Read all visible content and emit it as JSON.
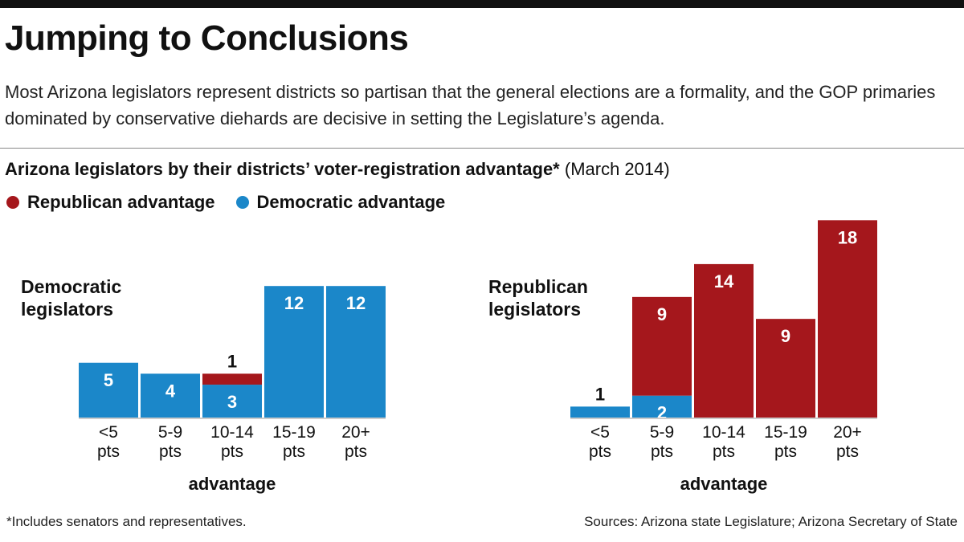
{
  "title": "Jumping to Conclusions",
  "subtitle": "Most Arizona legislators represent districts so partisan that the general elections are a formality, and the GOP primaries dominated by conservative diehards are decisive in setting the Legislature’s agenda.",
  "chart_heading": {
    "bold": "Arizona legislators by their districts’ voter-registration advantage*",
    "date": "(March 2014)"
  },
  "legend": [
    {
      "label": "Republican advantage",
      "color": "#a5171c"
    },
    {
      "label": "Democratic advantage",
      "color": "#1b87c9"
    }
  ],
  "chart_data": [
    {
      "type": "bar",
      "stacked": true,
      "title_lines": [
        "Democratic",
        "legislators"
      ],
      "categories": [
        [
          "<5",
          "pts"
        ],
        [
          "5-9",
          "pts"
        ],
        [
          "10-14",
          "pts"
        ],
        [
          "15-19",
          "pts"
        ],
        [
          "20+",
          "pts"
        ]
      ],
      "series": [
        {
          "name": "Democratic advantage",
          "color": "#1b87c9",
          "values": [
            5,
            4,
            3,
            12,
            12
          ]
        },
        {
          "name": "Republican advantage",
          "color": "#a5171c",
          "values": [
            0,
            0,
            1,
            0,
            0
          ]
        }
      ],
      "xlabel": "advantage"
    },
    {
      "type": "bar",
      "stacked": true,
      "title_lines": [
        "Republican",
        "legislators"
      ],
      "categories": [
        [
          "<5",
          "pts"
        ],
        [
          "5-9",
          "pts"
        ],
        [
          "10-14",
          "pts"
        ],
        [
          "15-19",
          "pts"
        ],
        [
          "20+",
          "pts"
        ]
      ],
      "series": [
        {
          "name": "Democratic advantage",
          "color": "#1b87c9",
          "values": [
            1,
            2,
            0,
            0,
            0
          ]
        },
        {
          "name": "Republican advantage",
          "color": "#a5171c",
          "values": [
            0,
            9,
            14,
            9,
            18
          ]
        }
      ],
      "xlabel": "advantage"
    }
  ],
  "footnote": "*Includes senators and representatives.",
  "sources": "Sources: Arizona state Legislature; Arizona Secretary of State"
}
